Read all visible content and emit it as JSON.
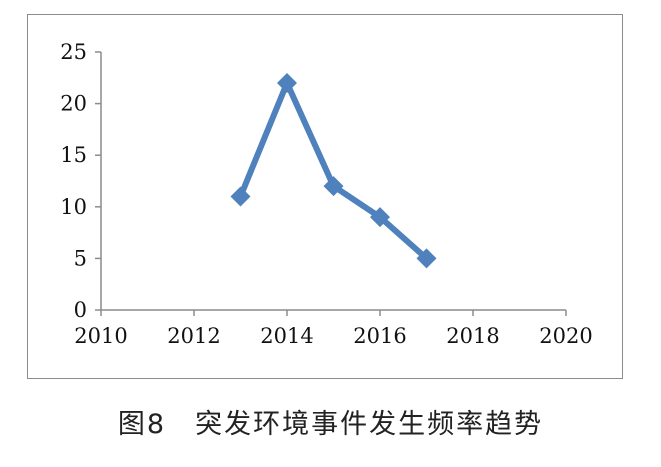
{
  "caption": "图8　突发环境事件发生频率趋势",
  "colors": {
    "series": "#4f81bd",
    "axis": "#8c8c8c",
    "frame": "#8c8c8c"
  },
  "chart_data": {
    "type": "line",
    "title": "",
    "xlabel": "",
    "ylabel": "",
    "xlim": [
      2010,
      2020
    ],
    "ylim": [
      0,
      25
    ],
    "x_ticks": [
      "2010",
      "2012",
      "2014",
      "2016",
      "2018",
      "2020"
    ],
    "y_ticks": [
      "0",
      "5",
      "10",
      "15",
      "20",
      "25"
    ],
    "grid": false,
    "legend": "none",
    "marker": "diamond",
    "series": [
      {
        "x": [
          2013,
          2014,
          2015,
          2016,
          2017
        ],
        "values": [
          11,
          22,
          12,
          9,
          5
        ]
      }
    ]
  }
}
